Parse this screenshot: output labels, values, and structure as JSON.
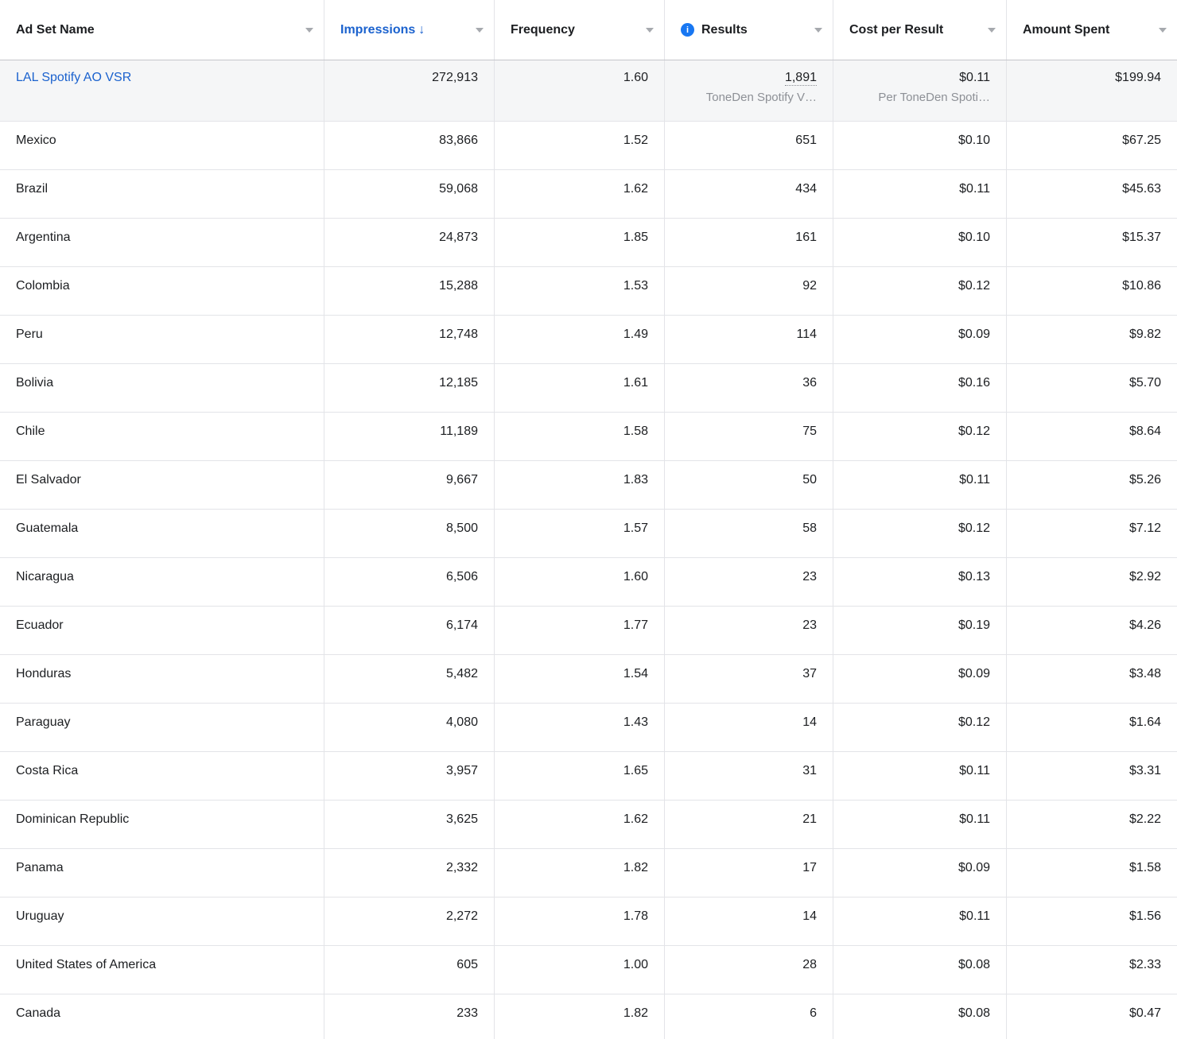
{
  "colors": {
    "accent_blue": "#1B62CE",
    "info_icon_blue": "#1877F2",
    "subtitle_gray": "#8D9096",
    "grid_line": "#E3E4E8",
    "header_border": "#C4C6CB",
    "summary_row_bg": "#F5F6F7"
  },
  "header": {
    "ad_set_name": "Ad Set Name",
    "impressions": "Impressions",
    "sort_arrow": "↓",
    "frequency": "Frequency",
    "results": "Results",
    "results_info_glyph": "i",
    "cost_per_result": "Cost per Result",
    "amount_spent": "Amount Spent"
  },
  "table": {
    "summary_row": {
      "name": "LAL Spotify AO VSR",
      "impressions": "272,913",
      "frequency": "1.60",
      "results": "1,891",
      "results_subtitle": "ToneDen Spotify V…",
      "cost_per_result": "$0.11",
      "cost_per_result_subtitle": "Per ToneDen Spoti…",
      "amount_spent": "$199.94"
    },
    "rows": [
      {
        "name": "Mexico",
        "impressions": "83,866",
        "frequency": "1.52",
        "results": "651",
        "cost_per_result": "$0.10",
        "amount_spent": "$67.25"
      },
      {
        "name": "Brazil",
        "impressions": "59,068",
        "frequency": "1.62",
        "results": "434",
        "cost_per_result": "$0.11",
        "amount_spent": "$45.63"
      },
      {
        "name": "Argentina",
        "impressions": "24,873",
        "frequency": "1.85",
        "results": "161",
        "cost_per_result": "$0.10",
        "amount_spent": "$15.37"
      },
      {
        "name": "Colombia",
        "impressions": "15,288",
        "frequency": "1.53",
        "results": "92",
        "cost_per_result": "$0.12",
        "amount_spent": "$10.86"
      },
      {
        "name": "Peru",
        "impressions": "12,748",
        "frequency": "1.49",
        "results": "114",
        "cost_per_result": "$0.09",
        "amount_spent": "$9.82"
      },
      {
        "name": "Bolivia",
        "impressions": "12,185",
        "frequency": "1.61",
        "results": "36",
        "cost_per_result": "$0.16",
        "amount_spent": "$5.70"
      },
      {
        "name": "Chile",
        "impressions": "11,189",
        "frequency": "1.58",
        "results": "75",
        "cost_per_result": "$0.12",
        "amount_spent": "$8.64"
      },
      {
        "name": "El Salvador",
        "impressions": "9,667",
        "frequency": "1.83",
        "results": "50",
        "cost_per_result": "$0.11",
        "amount_spent": "$5.26"
      },
      {
        "name": "Guatemala",
        "impressions": "8,500",
        "frequency": "1.57",
        "results": "58",
        "cost_per_result": "$0.12",
        "amount_spent": "$7.12"
      },
      {
        "name": "Nicaragua",
        "impressions": "6,506",
        "frequency": "1.60",
        "results": "23",
        "cost_per_result": "$0.13",
        "amount_spent": "$2.92"
      },
      {
        "name": "Ecuador",
        "impressions": "6,174",
        "frequency": "1.77",
        "results": "23",
        "cost_per_result": "$0.19",
        "amount_spent": "$4.26"
      },
      {
        "name": "Honduras",
        "impressions": "5,482",
        "frequency": "1.54",
        "results": "37",
        "cost_per_result": "$0.09",
        "amount_spent": "$3.48"
      },
      {
        "name": "Paraguay",
        "impressions": "4,080",
        "frequency": "1.43",
        "results": "14",
        "cost_per_result": "$0.12",
        "amount_spent": "$1.64"
      },
      {
        "name": "Costa Rica",
        "impressions": "3,957",
        "frequency": "1.65",
        "results": "31",
        "cost_per_result": "$0.11",
        "amount_spent": "$3.31"
      },
      {
        "name": "Dominican Republic",
        "impressions": "3,625",
        "frequency": "1.62",
        "results": "21",
        "cost_per_result": "$0.11",
        "amount_spent": "$2.22"
      },
      {
        "name": "Panama",
        "impressions": "2,332",
        "frequency": "1.82",
        "results": "17",
        "cost_per_result": "$0.09",
        "amount_spent": "$1.58"
      },
      {
        "name": "Uruguay",
        "impressions": "2,272",
        "frequency": "1.78",
        "results": "14",
        "cost_per_result": "$0.11",
        "amount_spent": "$1.56"
      },
      {
        "name": "United States of America",
        "impressions": "605",
        "frequency": "1.00",
        "results": "28",
        "cost_per_result": "$0.08",
        "amount_spent": "$2.33"
      },
      {
        "name": "Canada",
        "impressions": "233",
        "frequency": "1.82",
        "results": "6",
        "cost_per_result": "$0.08",
        "amount_spent": "$0.47"
      }
    ]
  }
}
